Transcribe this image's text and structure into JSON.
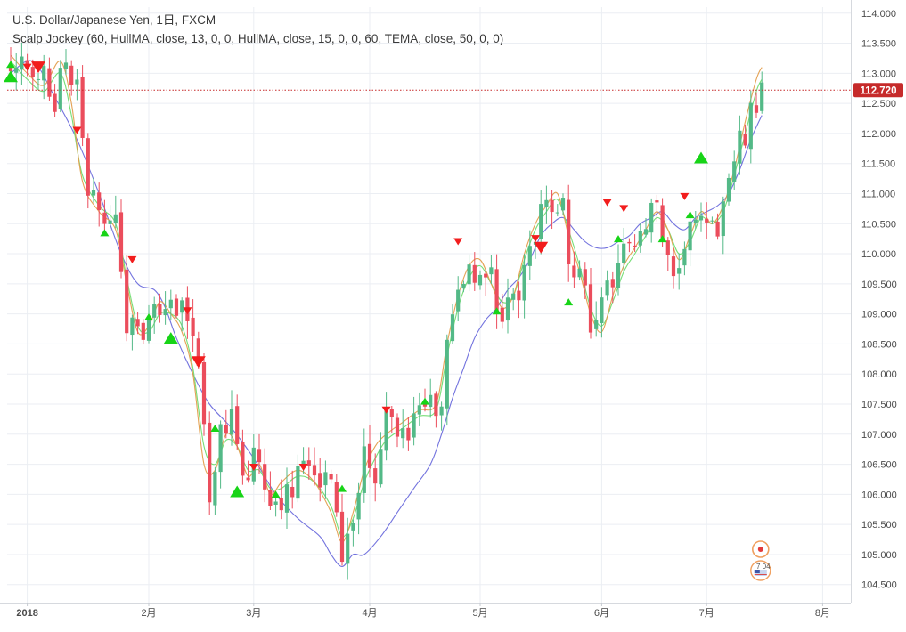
{
  "legend": {
    "symbol_line": "U.S. Dollar/Japanese Yen, 1日, FXCM",
    "indicator_line": "Scalp Jockey (60, HullMA, close, 13, 0, 0, HullMA, close, 15, 0, 0, 60, TEMA, close, 50, 0, 0)"
  },
  "price_label": "112.720",
  "event_badge": "7 04",
  "colors": {
    "up": "#53b987",
    "down": "#eb4d5c",
    "ma_blue": "#6b6bdc",
    "ma_orange": "#e39d4b",
    "ma_green": "#6fdc6f",
    "signal_buy": "#17d417",
    "signal_sell": "#f21d1d",
    "grid": "#ebeef3",
    "price_line": "#c62a2a"
  },
  "chart_data": {
    "type": "candlestick",
    "y_axis": {
      "range": [
        104.2,
        114.1
      ],
      "ticks": [
        "104.500",
        "105.000",
        "105.500",
        "106.000",
        "106.500",
        "107.000",
        "107.500",
        "108.000",
        "108.500",
        "109.000",
        "109.500",
        "110.000",
        "110.500",
        "111.000",
        "111.500",
        "112.000",
        "112.500",
        "113.000",
        "113.500",
        "114.000"
      ]
    },
    "x_axis": {
      "ticks": [
        {
          "label": "2018",
          "index": 3
        },
        {
          "label": "2月",
          "index": 25
        },
        {
          "label": "3月",
          "index": 44
        },
        {
          "label": "4月",
          "index": 65
        },
        {
          "label": "5月",
          "index": 85
        },
        {
          "label": "6月",
          "index": 107
        },
        {
          "label": "7月",
          "index": 126
        },
        {
          "label": "8月",
          "index": 147
        }
      ]
    },
    "last_price": 112.72,
    "close_path": [
      [
        0,
        113.3
      ],
      [
        4,
        113.1
      ],
      [
        8,
        112.6
      ],
      [
        10,
        113.2
      ],
      [
        12,
        112.7
      ],
      [
        14,
        110.9
      ],
      [
        17,
        110.6
      ],
      [
        19,
        110.4
      ],
      [
        21,
        108.7
      ],
      [
        24,
        108.8
      ],
      [
        26,
        109.2
      ],
      [
        28,
        109.1
      ],
      [
        31,
        109.0
      ],
      [
        34,
        108.2
      ],
      [
        36,
        106.1
      ],
      [
        38,
        106.9
      ],
      [
        40,
        107.3
      ],
      [
        42,
        106.1
      ],
      [
        44,
        106.8
      ],
      [
        46,
        106.0
      ],
      [
        48,
        105.9
      ],
      [
        52,
        106.3
      ],
      [
        56,
        106.3
      ],
      [
        58,
        106.0
      ],
      [
        60,
        105.1
      ],
      [
        62,
        105.6
      ],
      [
        64,
        106.8
      ],
      [
        66,
        106.3
      ],
      [
        68,
        107.2
      ],
      [
        72,
        107.0
      ],
      [
        75,
        107.4
      ],
      [
        78,
        107.5
      ],
      [
        80,
        109.2
      ],
      [
        82,
        109.6
      ],
      [
        84,
        109.5
      ],
      [
        86,
        109.8
      ],
      [
        88,
        109.2
      ],
      [
        90,
        109.0
      ],
      [
        92,
        109.5
      ],
      [
        94,
        110.3
      ],
      [
        96,
        110.6
      ],
      [
        98,
        110.8
      ],
      [
        100,
        110.9
      ],
      [
        101,
        109.9
      ],
      [
        103,
        109.6
      ],
      [
        105,
        108.9
      ],
      [
        107,
        109.2
      ],
      [
        109,
        109.6
      ],
      [
        111,
        109.9
      ],
      [
        113,
        110.2
      ],
      [
        115,
        110.5
      ],
      [
        117,
        110.7
      ],
      [
        119,
        110.0
      ],
      [
        121,
        109.8
      ],
      [
        123,
        110.4
      ],
      [
        125,
        110.6
      ],
      [
        127,
        110.5
      ],
      [
        129,
        110.6
      ],
      [
        131,
        111.6
      ],
      [
        133,
        112.0
      ],
      [
        135,
        112.6
      ],
      [
        136,
        112.7
      ]
    ],
    "indicator_blue": [
      [
        0,
        113.0
      ],
      [
        4,
        113.2
      ],
      [
        8,
        112.6
      ],
      [
        12,
        111.9
      ],
      [
        16,
        111.0
      ],
      [
        20,
        110.0
      ],
      [
        23,
        109.5
      ],
      [
        26,
        109.4
      ],
      [
        28,
        109.1
      ],
      [
        30,
        108.6
      ],
      [
        33,
        108.0
      ],
      [
        36,
        107.5
      ],
      [
        40,
        107.1
      ],
      [
        44,
        106.6
      ],
      [
        48,
        106.0
      ],
      [
        52,
        105.6
      ],
      [
        56,
        105.3
      ],
      [
        58,
        105.0
      ],
      [
        60,
        104.8
      ],
      [
        62,
        105.0
      ],
      [
        64,
        105.0
      ],
      [
        67,
        105.3
      ],
      [
        70,
        105.7
      ],
      [
        73,
        106.1
      ],
      [
        76,
        106.5
      ],
      [
        78,
        107.0
      ],
      [
        80,
        107.6
      ],
      [
        82,
        108.1
      ],
      [
        84,
        108.6
      ],
      [
        86,
        108.9
      ],
      [
        88,
        109.1
      ],
      [
        90,
        109.4
      ],
      [
        92,
        109.6
      ],
      [
        94,
        109.9
      ],
      [
        96,
        110.3
      ],
      [
        98,
        110.5
      ],
      [
        100,
        110.6
      ],
      [
        102,
        110.4
      ],
      [
        104,
        110.2
      ],
      [
        106,
        110.1
      ],
      [
        108,
        110.1
      ],
      [
        110,
        110.2
      ],
      [
        112,
        110.3
      ],
      [
        114,
        110.5
      ],
      [
        116,
        110.6
      ],
      [
        118,
        110.7
      ],
      [
        120,
        110.5
      ],
      [
        122,
        110.4
      ],
      [
        124,
        110.6
      ],
      [
        126,
        110.7
      ],
      [
        128,
        110.8
      ],
      [
        130,
        111.0
      ],
      [
        132,
        111.4
      ],
      [
        134,
        111.9
      ],
      [
        136,
        112.3
      ]
    ],
    "indicator_orange": [
      [
        0,
        113.3
      ],
      [
        3,
        113.0
      ],
      [
        6,
        112.8
      ],
      [
        9,
        113.2
      ],
      [
        11,
        112.5
      ],
      [
        13,
        111.2
      ],
      [
        16,
        110.7
      ],
      [
        19,
        110.4
      ],
      [
        21,
        109.5
      ],
      [
        23,
        108.7
      ],
      [
        25,
        108.8
      ],
      [
        27,
        109.2
      ],
      [
        29,
        109.0
      ],
      [
        31,
        108.7
      ],
      [
        33,
        108.0
      ],
      [
        35,
        106.5
      ],
      [
        37,
        106.4
      ],
      [
        39,
        107.0
      ],
      [
        41,
        106.8
      ],
      [
        43,
        106.3
      ],
      [
        45,
        106.5
      ],
      [
        47,
        106.0
      ],
      [
        49,
        106.2
      ],
      [
        52,
        106.4
      ],
      [
        55,
        106.2
      ],
      [
        58,
        105.7
      ],
      [
        60,
        105.2
      ],
      [
        62,
        105.7
      ],
      [
        64,
        106.4
      ],
      [
        66,
        106.8
      ],
      [
        68,
        107.0
      ],
      [
        71,
        107.2
      ],
      [
        74,
        107.4
      ],
      [
        77,
        107.5
      ],
      [
        79,
        108.5
      ],
      [
        81,
        109.3
      ],
      [
        83,
        109.8
      ],
      [
        85,
        109.9
      ],
      [
        87,
        109.5
      ],
      [
        89,
        109.1
      ],
      [
        91,
        109.3
      ],
      [
        93,
        110.0
      ],
      [
        95,
        110.5
      ],
      [
        97,
        110.8
      ],
      [
        99,
        111.0
      ],
      [
        101,
        110.3
      ],
      [
        103,
        109.7
      ],
      [
        105,
        109.0
      ],
      [
        107,
        108.7
      ],
      [
        109,
        109.3
      ],
      [
        111,
        109.8
      ],
      [
        113,
        110.1
      ],
      [
        115,
        110.4
      ],
      [
        117,
        110.7
      ],
      [
        119,
        110.4
      ],
      [
        121,
        109.9
      ],
      [
        123,
        110.3
      ],
      [
        125,
        110.7
      ],
      [
        127,
        110.5
      ],
      [
        129,
        110.8
      ],
      [
        131,
        111.4
      ],
      [
        133,
        112.2
      ],
      [
        135,
        112.9
      ],
      [
        136,
        113.1
      ]
    ],
    "indicator_green": [
      [
        0,
        113.2
      ],
      [
        3,
        112.9
      ],
      [
        6,
        112.7
      ],
      [
        9,
        113.0
      ],
      [
        11,
        112.3
      ],
      [
        13,
        111.3
      ],
      [
        16,
        110.8
      ],
      [
        19,
        110.5
      ],
      [
        21,
        109.6
      ],
      [
        23,
        108.8
      ],
      [
        25,
        108.7
      ],
      [
        27,
        109.0
      ],
      [
        29,
        109.0
      ],
      [
        31,
        108.8
      ],
      [
        33,
        108.1
      ],
      [
        35,
        106.8
      ],
      [
        37,
        106.5
      ],
      [
        39,
        106.9
      ],
      [
        41,
        106.8
      ],
      [
        43,
        106.4
      ],
      [
        45,
        106.4
      ],
      [
        47,
        106.1
      ],
      [
        49,
        106.1
      ],
      [
        52,
        106.3
      ],
      [
        55,
        106.2
      ],
      [
        58,
        105.8
      ],
      [
        60,
        105.3
      ],
      [
        62,
        105.6
      ],
      [
        64,
        106.2
      ],
      [
        66,
        106.6
      ],
      [
        68,
        106.9
      ],
      [
        71,
        107.1
      ],
      [
        74,
        107.3
      ],
      [
        77,
        107.4
      ],
      [
        79,
        108.3
      ],
      [
        81,
        109.1
      ],
      [
        83,
        109.6
      ],
      [
        85,
        109.8
      ],
      [
        87,
        109.5
      ],
      [
        89,
        109.2
      ],
      [
        91,
        109.3
      ],
      [
        93,
        109.9
      ],
      [
        95,
        110.4
      ],
      [
        97,
        110.7
      ],
      [
        99,
        110.9
      ],
      [
        101,
        110.4
      ],
      [
        103,
        109.8
      ],
      [
        105,
        109.1
      ],
      [
        107,
        108.8
      ],
      [
        109,
        109.2
      ],
      [
        111,
        109.7
      ],
      [
        113,
        110.0
      ],
      [
        115,
        110.3
      ],
      [
        117,
        110.6
      ],
      [
        119,
        110.4
      ],
      [
        121,
        110.0
      ],
      [
        123,
        110.2
      ],
      [
        125,
        110.6
      ],
      [
        127,
        110.5
      ],
      [
        129,
        110.7
      ],
      [
        131,
        111.3
      ],
      [
        133,
        112.0
      ],
      [
        135,
        112.7
      ],
      [
        136,
        112.9
      ]
    ],
    "buy_signals": [
      {
        "index": 0,
        "price": 112.95,
        "size": "large"
      },
      {
        "index": 0,
        "price": 113.15,
        "size": "small"
      },
      {
        "index": 17,
        "price": 110.35,
        "size": "small"
      },
      {
        "index": 25,
        "price": 108.95,
        "size": "small"
      },
      {
        "index": 29,
        "price": 108.6,
        "size": "large"
      },
      {
        "index": 37,
        "price": 107.1,
        "size": "small"
      },
      {
        "index": 41,
        "price": 106.05,
        "size": "large"
      },
      {
        "index": 48,
        "price": 106.0,
        "size": "small"
      },
      {
        "index": 60,
        "price": 106.1,
        "size": "small"
      },
      {
        "index": 75,
        "price": 107.55,
        "size": "small"
      },
      {
        "index": 88,
        "price": 109.05,
        "size": "small"
      },
      {
        "index": 101,
        "price": 109.2,
        "size": "small"
      },
      {
        "index": 110,
        "price": 110.25,
        "size": "small"
      },
      {
        "index": 118,
        "price": 110.25,
        "size": "small"
      },
      {
        "index": 123,
        "price": 110.65,
        "size": "small"
      },
      {
        "index": 125,
        "price": 111.6,
        "size": "large"
      }
    ],
    "sell_signals": [
      {
        "index": 3,
        "price": 113.1,
        "size": "small"
      },
      {
        "index": 5,
        "price": 113.1,
        "size": "large"
      },
      {
        "index": 12,
        "price": 112.05,
        "size": "small"
      },
      {
        "index": 22,
        "price": 109.9,
        "size": "small"
      },
      {
        "index": 32,
        "price": 109.05,
        "size": "small"
      },
      {
        "index": 34,
        "price": 108.2,
        "size": "large"
      },
      {
        "index": 44,
        "price": 106.45,
        "size": "small"
      },
      {
        "index": 53,
        "price": 106.45,
        "size": "small"
      },
      {
        "index": 68,
        "price": 107.4,
        "size": "small"
      },
      {
        "index": 81,
        "price": 110.2,
        "size": "small"
      },
      {
        "index": 95,
        "price": 110.25,
        "size": "small"
      },
      {
        "index": 96,
        "price": 110.1,
        "size": "large"
      },
      {
        "index": 108,
        "price": 110.85,
        "size": "small"
      },
      {
        "index": 111,
        "price": 110.75,
        "size": "small"
      },
      {
        "index": 122,
        "price": 110.95,
        "size": "small"
      }
    ]
  }
}
